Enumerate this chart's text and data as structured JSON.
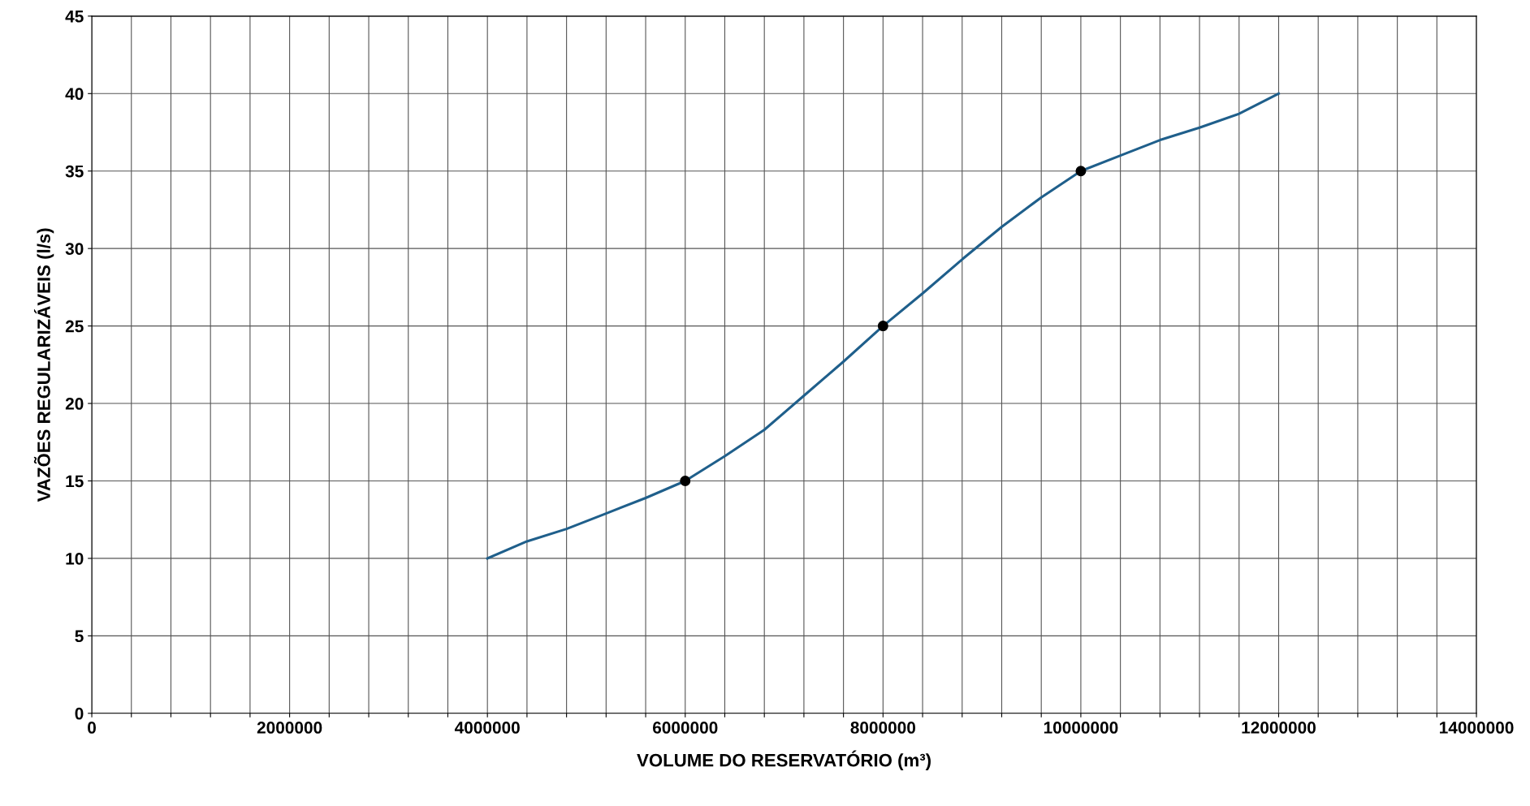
{
  "chart_data": {
    "type": "line",
    "xlabel": "VOLUME DO RESERVATÓRIO (m³)",
    "ylabel": "VAZÕES REGULARIZÁVEIS (l/s)",
    "xlim": [
      0,
      14000000
    ],
    "ylim": [
      0,
      45
    ],
    "xticks": [
      0,
      {
        "value": 400000,
        "label": null
      },
      {
        "value": 800000,
        "label": null
      },
      {
        "value": 1200000,
        "label": null
      },
      {
        "value": 1600000,
        "label": null
      },
      2000000,
      {
        "value": 2400000,
        "label": null
      },
      {
        "value": 2800000,
        "label": null
      },
      {
        "value": 3200000,
        "label": null
      },
      {
        "value": 3600000,
        "label": null
      },
      4000000,
      {
        "value": 4400000,
        "label": null
      },
      {
        "value": 4800000,
        "label": null
      },
      {
        "value": 5200000,
        "label": null
      },
      {
        "value": 5600000,
        "label": null
      },
      6000000,
      {
        "value": 6400000,
        "label": null
      },
      {
        "value": 6800000,
        "label": null
      },
      {
        "value": 7200000,
        "label": null
      },
      {
        "value": 7600000,
        "label": null
      },
      8000000,
      {
        "value": 8400000,
        "label": null
      },
      {
        "value": 8800000,
        "label": null
      },
      {
        "value": 9200000,
        "label": null
      },
      {
        "value": 9600000,
        "label": null
      },
      10000000,
      {
        "value": 10400000,
        "label": null
      },
      {
        "value": 10800000,
        "label": null
      },
      {
        "value": 11200000,
        "label": null
      },
      {
        "value": 11600000,
        "label": null
      },
      12000000,
      {
        "value": 12400000,
        "label": null
      },
      {
        "value": 12800000,
        "label": null
      },
      {
        "value": 13200000,
        "label": null
      },
      {
        "value": 13600000,
        "label": null
      },
      14000000
    ],
    "yticks": [
      0,
      5,
      10,
      15,
      20,
      25,
      30,
      35,
      40,
      45
    ],
    "grid": true,
    "legend": false,
    "series": [
      {
        "color": "#1f5f8b",
        "marker": "none",
        "x": [
          4000000,
          4400000,
          4800000,
          5200000,
          5600000,
          6000000,
          6400000,
          6800000,
          7200000,
          7600000,
          8000000,
          8400000,
          8800000,
          9200000,
          9600000,
          10000000,
          10400000,
          10800000,
          11200000,
          11600000,
          12000000
        ],
        "values": [
          10,
          11.1,
          11.9,
          12.9,
          13.9,
          15,
          16.6,
          18.3,
          20.5,
          22.7,
          25,
          27.1,
          29.3,
          31.4,
          33.3,
          35,
          36.0,
          37.0,
          37.8,
          38.7,
          40
        ]
      },
      {
        "type": "scatter",
        "color": "#000000",
        "marker": "circle",
        "x": [
          6000000,
          8000000,
          10000000
        ],
        "values": [
          15,
          25,
          35
        ]
      }
    ]
  }
}
